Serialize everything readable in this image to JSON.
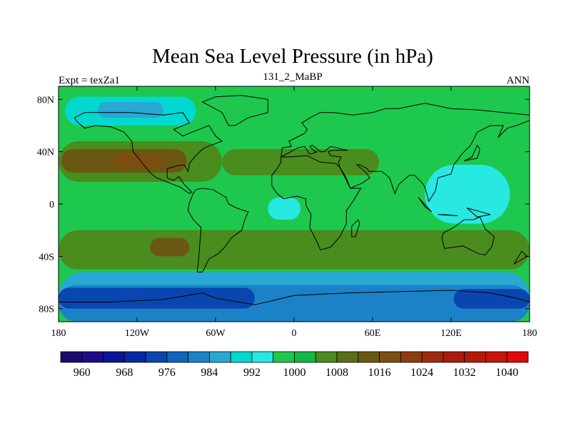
{
  "chart_data": {
    "type": "heatmap",
    "title": "Mean Sea Level Pressure (in hPa)",
    "left_label": "Expt = texZa1",
    "center_label": "131_2_MaBP",
    "right_label": "ANN",
    "x_range": [
      -180,
      180
    ],
    "y_range": [
      -90,
      90
    ],
    "x_ticks": [
      {
        "value": -180,
        "label": "180"
      },
      {
        "value": -120,
        "label": "120W"
      },
      {
        "value": -60,
        "label": "60W"
      },
      {
        "value": 0,
        "label": "0"
      },
      {
        "value": 60,
        "label": "60E"
      },
      {
        "value": 120,
        "label": "120E"
      },
      {
        "value": 180,
        "label": "180"
      }
    ],
    "y_ticks": [
      {
        "value": 80,
        "label": "80N"
      },
      {
        "value": 40,
        "label": "40N"
      },
      {
        "value": 0,
        "label": "0"
      },
      {
        "value": -40,
        "label": "40S"
      },
      {
        "value": -80,
        "label": "80S"
      }
    ],
    "field_background": 996,
    "regions": [
      {
        "name": "southern-trough-outer",
        "value": 984,
        "lon": [
          -180,
          180
        ],
        "lat": [
          -90,
          -52
        ]
      },
      {
        "name": "southern-trough-mid",
        "value": 980,
        "lon": [
          -180,
          180
        ],
        "lat": [
          -90,
          -62
        ]
      },
      {
        "name": "southern-trough-deep-west",
        "value": 972,
        "lon": [
          -180,
          -30
        ],
        "lat": [
          -80,
          -64
        ]
      },
      {
        "name": "southern-trough-deep-east",
        "value": 972,
        "lon": [
          122,
          180
        ],
        "lat": [
          -80,
          -65
        ]
      },
      {
        "name": "south-subtropical-belt",
        "value": 1004,
        "lon": [
          -180,
          180
        ],
        "lat": [
          -50,
          -20
        ]
      },
      {
        "name": "south-pacific-high",
        "value": 1012,
        "lon": [
          -110,
          -80
        ],
        "lat": [
          -40,
          -26
        ]
      },
      {
        "name": "north-pacific-high",
        "value": 1004,
        "lon": [
          -180,
          -55
        ],
        "lat": [
          17,
          48
        ]
      },
      {
        "name": "north-pacific-high-core",
        "value": 1012,
        "lon": [
          -178,
          -82
        ],
        "lat": [
          24,
          42
        ]
      },
      {
        "name": "north-pacific-high-center",
        "value": 1016,
        "lon": [
          -138,
          -100
        ],
        "lat": [
          28,
          38
        ]
      },
      {
        "name": "eurasian-belt",
        "value": 1004,
        "lon": [
          -55,
          65
        ],
        "lat": [
          22,
          42
        ]
      },
      {
        "name": "asian-low",
        "value": 992,
        "lon": [
          100,
          165
        ],
        "lat": [
          -15,
          30
        ]
      },
      {
        "name": "arctic-low",
        "value": 988,
        "lon": [
          -175,
          -75
        ],
        "lat": [
          60,
          82
        ]
      },
      {
        "name": "arctic-low-core",
        "value": 984,
        "lon": [
          -150,
          -100
        ],
        "lat": [
          66,
          78
        ]
      },
      {
        "name": "north-africa-low",
        "value": 992,
        "lon": [
          -20,
          5
        ],
        "lat": [
          -12,
          5
        ]
      }
    ],
    "colorbar": {
      "colors": [
        "#1c0a6e",
        "#1e0a8a",
        "#0a1496",
        "#0628a2",
        "#0a46b0",
        "#0f64be",
        "#1c82c8",
        "#28a8d2",
        "#00d8d0",
        "#28e8e2",
        "#1ec84e",
        "#10b846",
        "#4a8c1e",
        "#5a6e14",
        "#6a5812",
        "#7c4e10",
        "#8e3c0c",
        "#9e2a0c",
        "#aa1c0c",
        "#b41a0a",
        "#c8140a",
        "#e00a0a"
      ],
      "tick_labels": [
        "960",
        "968",
        "976",
        "984",
        "992",
        "1000",
        "1008",
        "1016",
        "1024",
        "1032",
        "1040"
      ],
      "min": 956,
      "step": 4
    },
    "coastlines": "simplified continent outlines"
  }
}
